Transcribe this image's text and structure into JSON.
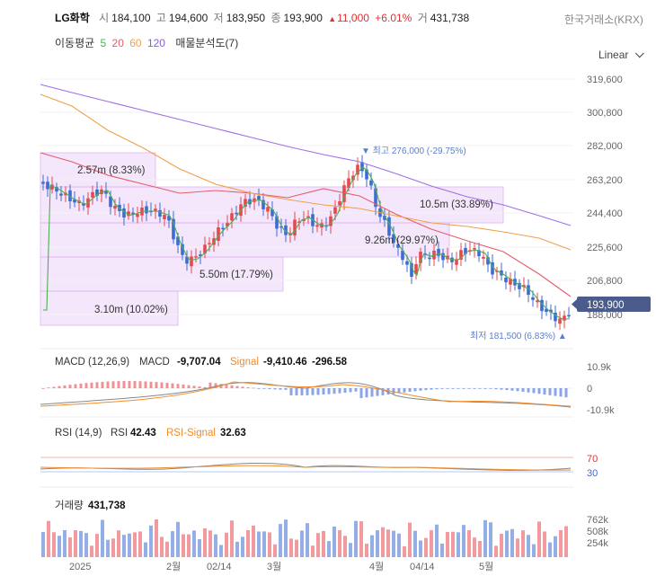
{
  "header": {
    "name": "LG화학",
    "open_label": "시",
    "open": "184,100",
    "high_label": "고",
    "high": "194,600",
    "low_label": "저",
    "low": "183,950",
    "close_label": "종",
    "close": "193,900",
    "change": "11,000",
    "change_pct": "+6.01%",
    "volume_label": "거",
    "volume": "431,738",
    "exchange": "한국거래소(KRX)"
  },
  "legend": {
    "ma_label": "이동평균",
    "ma5": "5",
    "ma20": "20",
    "ma60": "60",
    "ma120": "120",
    "profile_label": "매물분석도(7)"
  },
  "scale_toggle": "Linear",
  "colors": {
    "up": "#e8474e",
    "down": "#3d6bd4",
    "ma5": "#4caf50",
    "ma20": "#e35d6a",
    "ma60": "#f0a04b",
    "ma120": "#a06ee8",
    "profile": "#e9c9f7",
    "signal": "#f08c2b",
    "macd_line": "#888888"
  },
  "price_axis": {
    "ticks": [
      "319,600",
      "300,800",
      "282,000",
      "263,200",
      "244,400",
      "225,600",
      "206,800",
      "188,000"
    ],
    "current_tag": "193,900",
    "max_annotation": "▼ 최고 276,000 (-29.75%)",
    "min_annotation": "최저 181,500 (6.83%) ▲"
  },
  "volume_profile": [
    {
      "label": "2.57m (8.33%)"
    },
    {
      "label": "10.5m (33.89%)"
    },
    {
      "label": "9.26m (29.97%)"
    },
    {
      "label": "5.50m (17.79%)"
    },
    {
      "label": "3.10m (10.02%)"
    }
  ],
  "macd": {
    "title": "MACD (12,26,9)",
    "macd_label": "MACD",
    "macd_value": "-9,707.04",
    "signal_label": "Signal",
    "signal_value": "-9,410.46",
    "hist_value": "-296.58",
    "ticks": [
      "10.9k",
      "0",
      "-10.9k"
    ]
  },
  "rsi": {
    "title": "RSI (14,9)",
    "rsi_label": "RSI",
    "rsi_value": "42.43",
    "signal_label": "RSI-Signal",
    "signal_value": "32.63",
    "ticks": [
      "70",
      "30"
    ]
  },
  "volume": {
    "title": "거래량",
    "value": "431,738",
    "ticks": [
      "762k",
      "508k",
      "254k"
    ]
  },
  "x_axis": [
    "2025",
    "2월",
    "02/14",
    "3월",
    "4월",
    "04/14",
    "5월"
  ]
}
